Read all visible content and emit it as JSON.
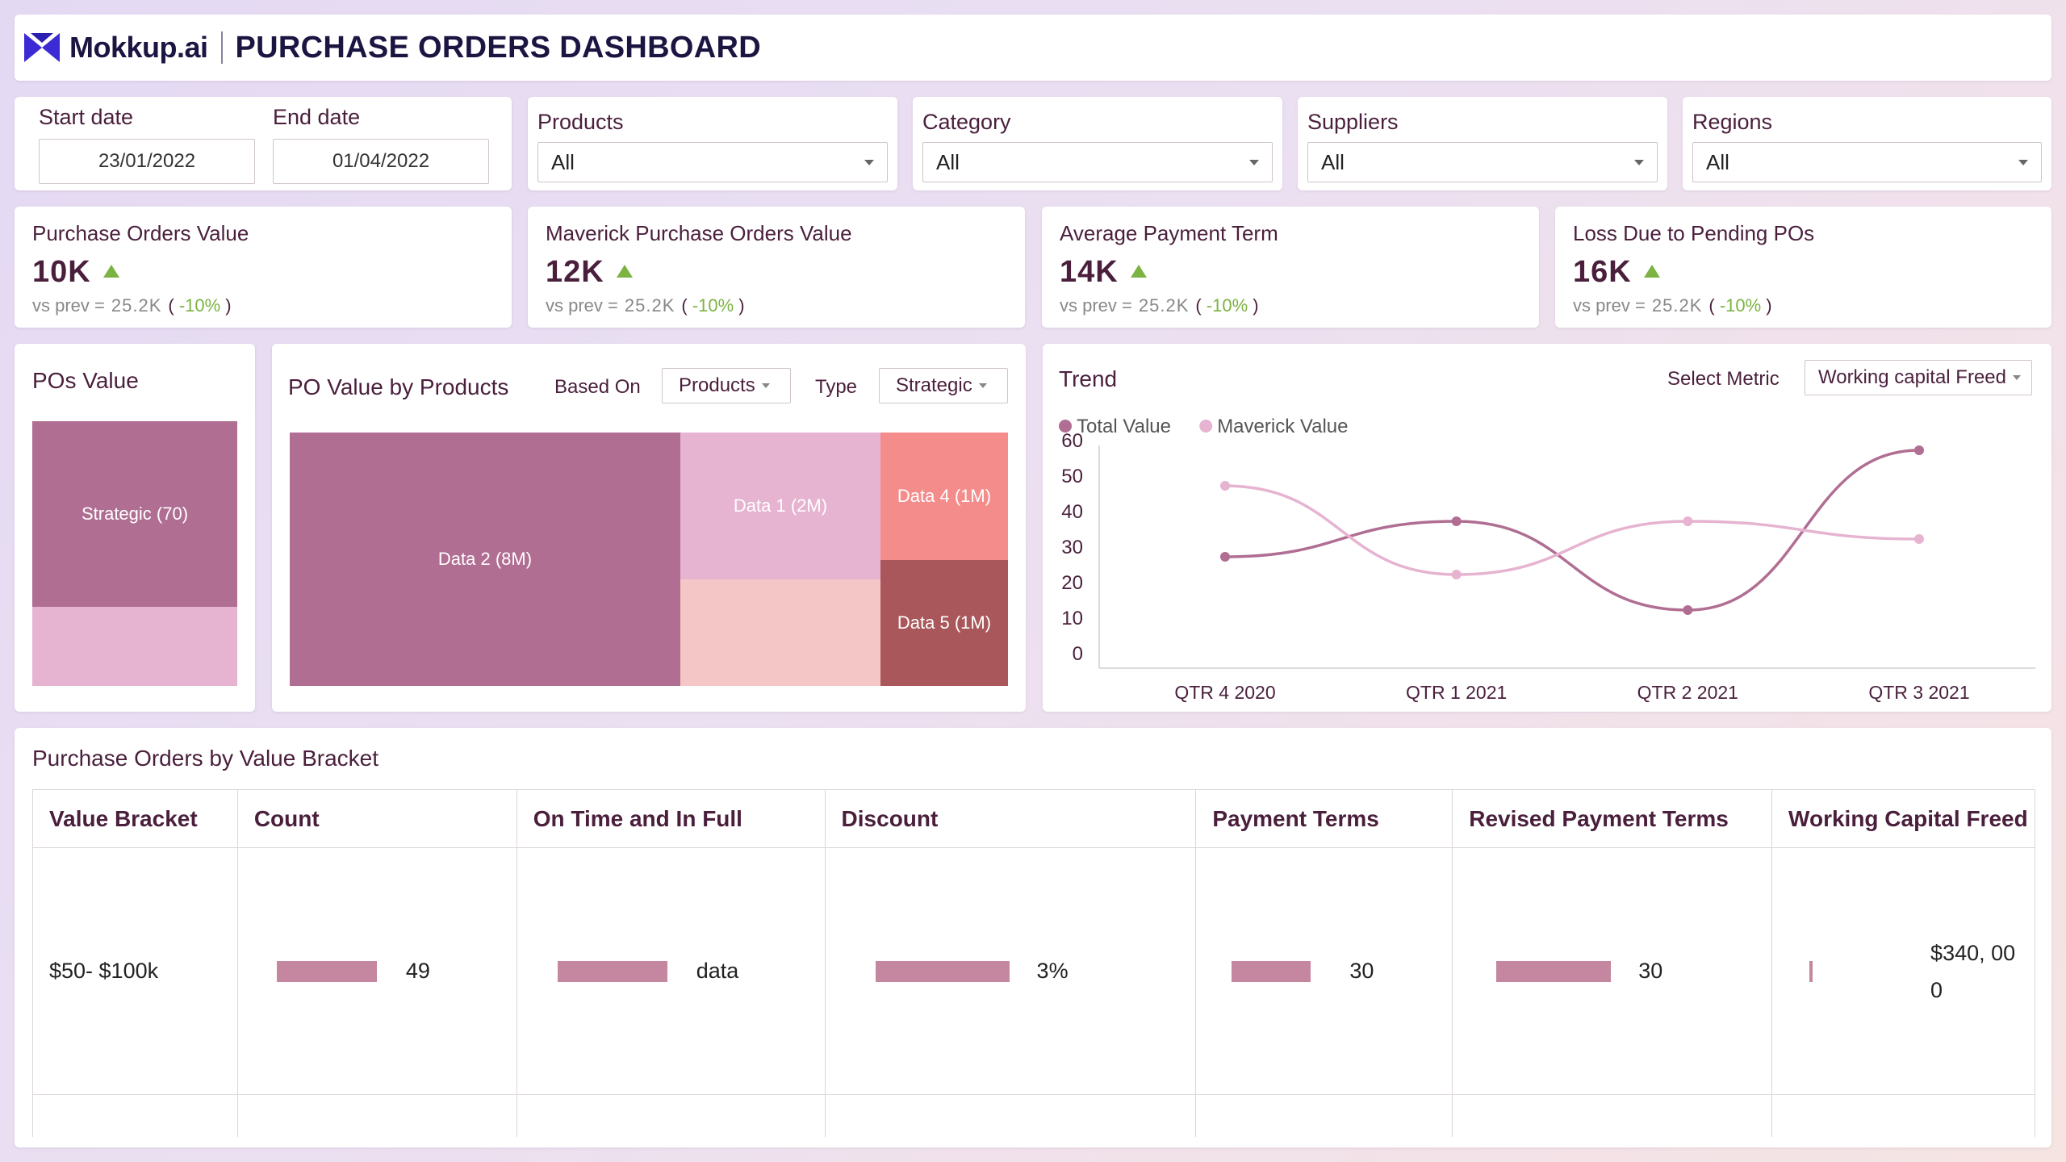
{
  "header": {
    "brand": "Mokkup.ai",
    "title": "PURCHASE ORDERS DASHBOARD",
    "logo_icon": "mokkup-logo-icon",
    "logo_color": "#3b2bd4"
  },
  "filters": {
    "start_date": {
      "label": "Start date",
      "value": "23/01/2022"
    },
    "end_date": {
      "label": "End date",
      "value": "01/04/2022"
    },
    "products": {
      "label": "Products",
      "value": "All"
    },
    "category": {
      "label": "Category",
      "value": "All"
    },
    "suppliers": {
      "label": "Suppliers",
      "value": "All"
    },
    "regions": {
      "label": "Regions",
      "value": "All"
    }
  },
  "kpis": [
    {
      "title": "Purchase Orders Value",
      "value": "10K",
      "vs_label": "vs prev =",
      "prev": "25.2K",
      "change": "-10%"
    },
    {
      "title": "Maverick Purchase Orders Value",
      "value": "12K",
      "vs_label": "vs prev =",
      "prev": "25.2K",
      "change": "-10%"
    },
    {
      "title": "Average Payment Term",
      "value": "14K",
      "vs_label": "vs prev =",
      "prev": "25.2K",
      "change": "-10%"
    },
    {
      "title": "Loss Due to Pending POs",
      "value": "16K",
      "vs_label": "vs prev =",
      "prev": "25.2K",
      "change": "-10%"
    }
  ],
  "pos_value": {
    "title": "POs Value",
    "label": "Strategic (70)",
    "strategic_share": 0.7,
    "colors": [
      "#b06e92",
      "#e6b3d0"
    ]
  },
  "po_by_products": {
    "title": "PO Value by Products",
    "based_on_label": "Based On",
    "based_on_value": "Products",
    "type_label": "Type",
    "type_value": "Strategic",
    "blocks": [
      {
        "label": "Data 2 (8M)",
        "color": "#b06e92"
      },
      {
        "label": "Data 1 (2M)",
        "color": "#e6b3d0"
      },
      {
        "label": "",
        "color": "#f4c6c6"
      },
      {
        "label": "Data 4 (1M)",
        "color": "#f48c8c"
      },
      {
        "label": "Data 5 (1M)",
        "color": "#a9575a"
      }
    ]
  },
  "trend": {
    "title": "Trend",
    "select_label": "Select Metric",
    "select_value": "Working capital Freed"
  },
  "chart_data": {
    "type": "line",
    "x": [
      "QTR 4 2020",
      "QTR 1 2021",
      "QTR 2 2021",
      "QTR 3 2021"
    ],
    "series": [
      {
        "name": "Total Value",
        "values": [
          30,
          40,
          15,
          60
        ],
        "color": "#b06e92"
      },
      {
        "name": "Maverick Value",
        "values": [
          50,
          25,
          40,
          35
        ],
        "color": "#e6b3d0"
      }
    ],
    "ylim": [
      0,
      60
    ],
    "yticks": [
      0,
      10,
      20,
      30,
      40,
      50,
      60
    ],
    "grid": false,
    "legend": "top-left",
    "smooth": true
  },
  "table": {
    "title": "Purchase Orders by Value Bracket",
    "columns": [
      "Value Bracket",
      "Count",
      "On Time and In Full",
      "Discount",
      "Payment Terms",
      "Revised Payment Terms",
      "Working Capital Freed"
    ],
    "rows": [
      {
        "bracket": "$50- $100k",
        "count": "49",
        "otif": "data",
        "discount": "3%",
        "payment_terms": "30",
        "revised_terms": "30",
        "wc_freed_line1": "$340, 00",
        "wc_freed_line2": "0"
      }
    ],
    "bar_color": "#c4879f"
  }
}
